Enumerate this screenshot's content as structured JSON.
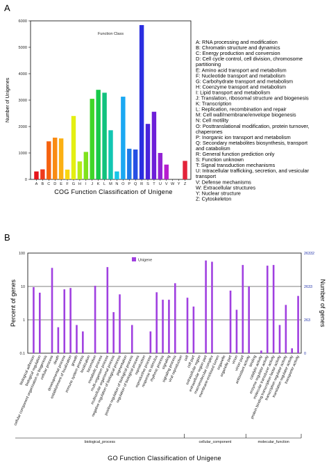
{
  "panel_a_label": "A",
  "panel_b_label": "B",
  "chart_data": [
    {
      "type": "bar",
      "title": "Function Class",
      "xlabel": "COG Function Classification of Unigene",
      "ylabel": "Number of Unigenes",
      "ylim": [
        0,
        6000
      ],
      "yticks": [
        "0",
        "1000",
        "2000",
        "3000",
        "4000",
        "5000",
        "6000"
      ],
      "grid": false,
      "legend_position": "right",
      "categories": [
        "A",
        "B",
        "C",
        "D",
        "E",
        "F",
        "G",
        "H",
        "I",
        "J",
        "K",
        "L",
        "M",
        "N",
        "O",
        "P",
        "Q",
        "R",
        "S",
        "T",
        "U",
        "V",
        "W",
        "Y",
        "Z"
      ],
      "values": [
        300,
        380,
        1440,
        1580,
        1550,
        370,
        2400,
        680,
        1040,
        3050,
        3390,
        3280,
        1860,
        300,
        3130,
        1160,
        1130,
        5840,
        2100,
        2560,
        1000,
        560,
        0,
        0,
        700
      ],
      "colors": [
        "#e5141b",
        "#ee3a1d",
        "#f5620f",
        "#f98b14",
        "#fbb013",
        "#f9d60f",
        "#e4ef12",
        "#b7eb18",
        "#7fe21c",
        "#3fd628",
        "#17c94a",
        "#11c27d",
        "#12c6b2",
        "#16c6e8",
        "#1ba8f2",
        "#1f7ae8",
        "#2650e4",
        "#2a2ee0",
        "#4a23dc",
        "#6d1fd8",
        "#9223d4",
        "#b61fcf",
        "#d41fb8",
        "#e0228c",
        "#e3233a"
      ],
      "legend": [
        "A: RNA processing and modification",
        "B: Chromatin structure and dynamics",
        "C: Energy production and conversion",
        "D: Cell cycle control, cell division, chromosome",
        "partitioning",
        "E: Amino acid transport and metabolism",
        "F: Nucleotide transport and metabolism",
        "G: Carbohydrate transport and metabolism",
        "H: Coenzyme transport and metabolism",
        "I: Lipid transport and metabolism",
        "J: Translation, ribosomal structure and biogenesis",
        "K: Transcription",
        "L: Replication, recombination and repair",
        "M: Cell wall/membrane/envelope biogenesis",
        "N: Cell motility",
        "O: Posttranslational modification, protein turnover,",
        "chaperones",
        "P: Inorganic ion transport and metabolism",
        "Q: Secondary metabolites biosynthesis, transport",
        "and catabolism",
        "R: General function prediction only",
        "S: Function unknown",
        "T: Signal transduction mechanisms",
        "U: Intracellular trafficking, secretion, and vesicular",
        "transport",
        "V: Defense mechanisms",
        "W: Extracellular structures",
        "Y: Nuclear structure",
        "Z: Cytoskeleton"
      ]
    },
    {
      "type": "bar",
      "xlabel": "GO Function Classification of Unigene",
      "ylabel": "Percent of genes",
      "ylabel_right": "Number of genes",
      "yscale": "log",
      "ylim": [
        0.1,
        100
      ],
      "yticks": [
        "100",
        "10",
        "1",
        "0.1"
      ],
      "yticks_right": [
        "26332",
        "2633",
        "263",
        "0"
      ],
      "legend": "Unigene",
      "legend_position": "top-left",
      "bar_color": "#a040e0",
      "categories": [
        "biological adhesion",
        "biological regulation",
        "cellular component organization or biogenesis",
        "cellular process",
        "death",
        "developmental process",
        "establishment of localization",
        "growth",
        "immune system process",
        "localization",
        "locomotion",
        "metabolic process",
        "multi-organism process",
        "multicellular organismal process",
        "negative regulation of biological process",
        "pigmentation",
        "positive regulation of biological process",
        "regulation of biological process",
        "reproduction",
        "reproductive process",
        "response to stimulus",
        "rhythmic process",
        "signaling",
        "signaling process",
        "viral reproduction",
        "cell",
        "cell part",
        "extracellular region",
        "extracellular region part",
        "macromolecular complex",
        "membrane-enclosed lumen",
        "organelle",
        "organelle part",
        "virion",
        "virion part",
        "antioxidant activity",
        "binding",
        "catalytic activity",
        "enzyme regulator activity",
        "molecular transducer activity",
        "protein binding transcription factor activity",
        "transcription regulator activity",
        "translation regulator activity",
        "transporter activity"
      ],
      "values": [
        9.5,
        6.5,
        0.1,
        36,
        0.6,
        8.2,
        9.0,
        0.7,
        0.45,
        0.1,
        10.5,
        0.1,
        38,
        1.7,
        5.8,
        0.1,
        0.7,
        0.1,
        0.1,
        0.45,
        6.7,
        4.0,
        4.0,
        12.5,
        0.1,
        4.6,
        2.5,
        0.1,
        60,
        55,
        0.1,
        0.1,
        7.5,
        2.0,
        44,
        10.0,
        0.1,
        0.12,
        42,
        44,
        0.7,
        2.8,
        0.14,
        5.2
      ],
      "groups": [
        {
          "name": "biological_process",
          "count": 25
        },
        {
          "name": "cellular_component",
          "count": 10
        },
        {
          "name": "molecular_function",
          "count": 9
        }
      ]
    }
  ]
}
